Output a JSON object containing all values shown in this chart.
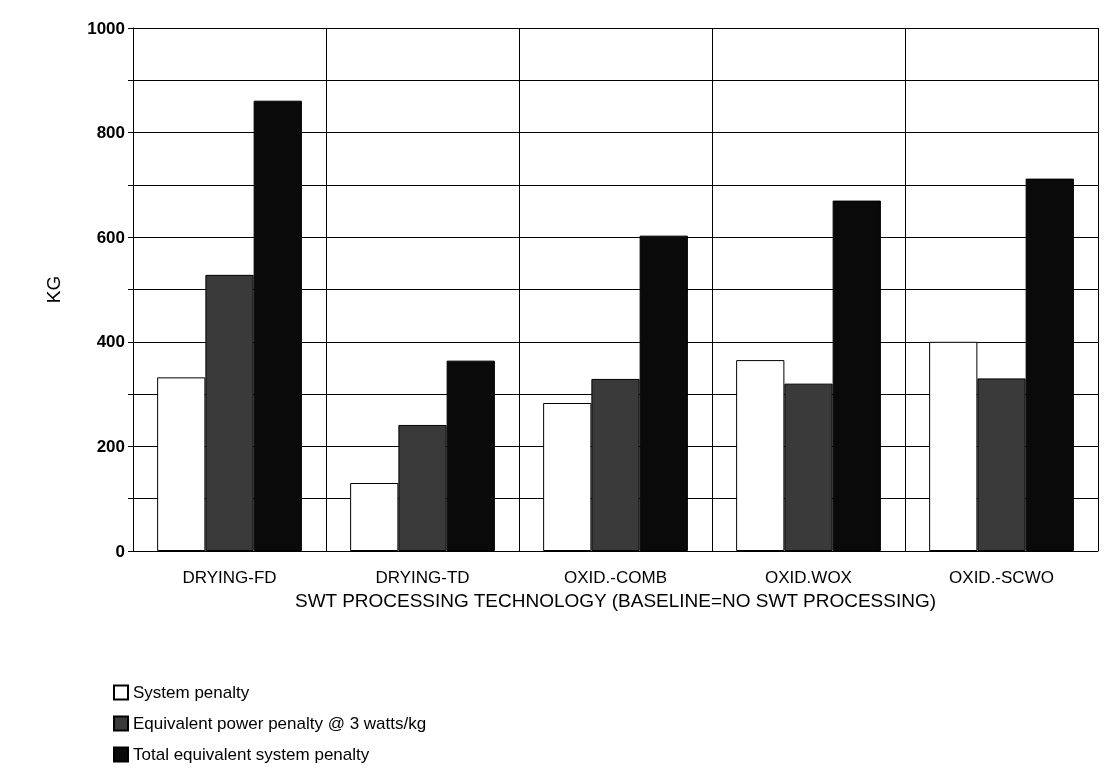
{
  "chart_data": {
    "type": "bar",
    "xlabel": "SWT PROCESSING TECHNOLOGY (BASELINE=NO SWT PROCESSING)",
    "ylabel": "KG",
    "categories": [
      "DRYING-FD",
      "DRYING-TD",
      "OXID.-COMB",
      "OXID.WOX",
      "OXID.-SCWO"
    ],
    "series": [
      {
        "name": "System penalty",
        "color": "#ffffff",
        "values": [
          332,
          130,
          283,
          365,
          400
        ]
      },
      {
        "name": "Equivalent power penalty @ 3 watts/kg",
        "color": "#3a3a3a",
        "values": [
          528,
          241,
          329,
          320,
          330
        ]
      },
      {
        "name": "Total equivalent system penalty",
        "color": "#0a0a0a",
        "values": [
          861,
          364,
          603,
          670,
          712
        ]
      }
    ],
    "ylim": [
      0,
      1000
    ],
    "yticks": [
      0,
      {
        "value": 100,
        "label": null
      },
      200,
      {
        "value": 300,
        "label": null
      },
      400,
      {
        "value": 500,
        "label": null
      },
      600,
      {
        "value": 700,
        "label": null
      },
      800,
      {
        "value": 900,
        "label": null
      },
      1000
    ],
    "grid": true,
    "legend": "bottom left"
  }
}
